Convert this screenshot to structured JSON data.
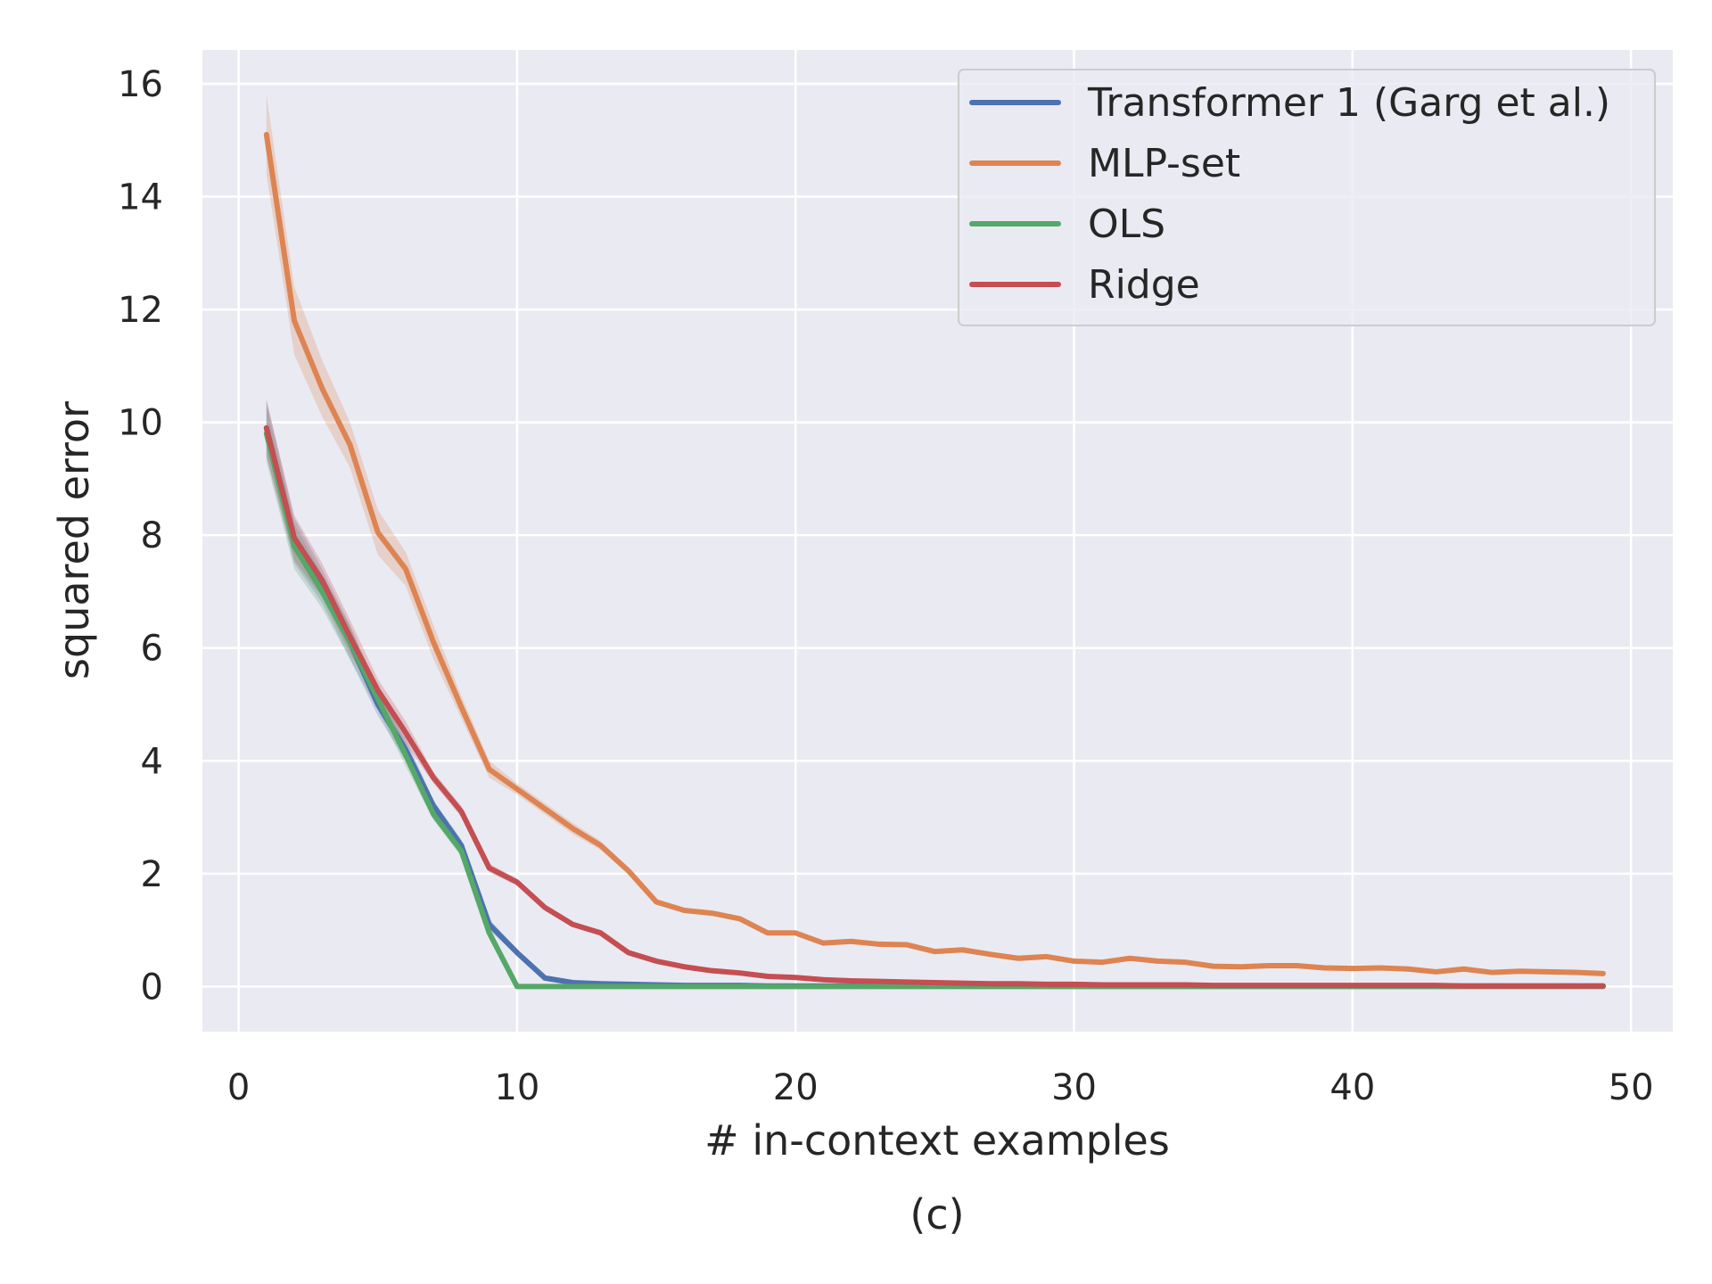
{
  "chart_data": {
    "type": "line",
    "title": "",
    "caption": "(c)",
    "xlabel": "# in-context examples",
    "ylabel": "squared error",
    "xlim": [
      -1.3,
      51.5
    ],
    "ylim": [
      -0.8,
      16.6
    ],
    "xticks": [
      0,
      10,
      20,
      30,
      40,
      50
    ],
    "yticks": [
      0,
      2,
      4,
      6,
      8,
      10,
      12,
      14,
      16
    ],
    "grid": true,
    "legend_position": "top-right",
    "x": [
      1,
      2,
      3,
      4,
      5,
      6,
      7,
      8,
      9,
      10,
      11,
      12,
      13,
      14,
      15,
      16,
      17,
      18,
      19,
      20,
      21,
      22,
      23,
      24,
      25,
      26,
      27,
      28,
      29,
      30,
      31,
      32,
      33,
      34,
      35,
      36,
      37,
      38,
      39,
      40,
      41,
      42,
      43,
      44,
      45,
      46,
      47,
      48,
      49
    ],
    "series": [
      {
        "name": "Transformer 1 (Garg et al.)",
        "color": "#4c72b0",
        "values": [
          9.9,
          7.9,
          7.1,
          6.1,
          5.0,
          4.2,
          3.2,
          2.5,
          1.1,
          0.6,
          0.15,
          0.07,
          0.05,
          0.04,
          0.03,
          0.02,
          0.02,
          0.02,
          0.01,
          0.01,
          0.01,
          0.01,
          0.01,
          0.01,
          0.01,
          0.01,
          0.01,
          0.01,
          0.01,
          0.01,
          0.01,
          0.01,
          0.01,
          0.01,
          0.01,
          0.01,
          0.01,
          0.01,
          0.01,
          0.01,
          0.01,
          0.01,
          0.01,
          0.01,
          0.01,
          0.01,
          0.01,
          0.01,
          0.01
        ],
        "band": [
          0.5,
          0.4,
          0.3,
          0.3,
          0.2,
          0.2,
          0.1,
          0.1,
          0.1,
          0.05,
          0.03,
          0.02,
          0.01,
          0.01,
          0.01,
          0,
          0,
          0,
          0,
          0,
          0,
          0,
          0,
          0,
          0,
          0,
          0,
          0,
          0,
          0,
          0,
          0,
          0,
          0,
          0,
          0,
          0,
          0,
          0,
          0,
          0,
          0,
          0,
          0,
          0,
          0,
          0,
          0,
          0
        ]
      },
      {
        "name": "MLP-set",
        "color": "#dd8452",
        "values": [
          15.1,
          11.8,
          10.6,
          9.6,
          8.05,
          7.4,
          6.1,
          4.95,
          3.85,
          3.5,
          3.15,
          2.8,
          2.5,
          2.05,
          1.5,
          1.35,
          1.3,
          1.2,
          0.95,
          0.95,
          0.77,
          0.8,
          0.75,
          0.74,
          0.62,
          0.65,
          0.57,
          0.5,
          0.53,
          0.45,
          0.43,
          0.5,
          0.45,
          0.43,
          0.36,
          0.35,
          0.37,
          0.37,
          0.33,
          0.32,
          0.33,
          0.31,
          0.26,
          0.31,
          0.25,
          0.27,
          0.26,
          0.25,
          0.23
        ],
        "band": [
          0.7,
          0.6,
          0.5,
          0.4,
          0.4,
          0.3,
          0.3,
          0.2,
          0.15,
          0.1,
          0.1,
          0.1,
          0.08,
          0.06,
          0.05,
          0.04,
          0.04,
          0.03,
          0.03,
          0.03,
          0.02,
          0.02,
          0.02,
          0.02,
          0.02,
          0.02,
          0.02,
          0.02,
          0.02,
          0.02,
          0.02,
          0.02,
          0.02,
          0.02,
          0.02,
          0.02,
          0.02,
          0.02,
          0.02,
          0.02,
          0.02,
          0.02,
          0.02,
          0.02,
          0.02,
          0.02,
          0.02,
          0.02,
          0.02
        ]
      },
      {
        "name": "OLS",
        "color": "#55a868",
        "values": [
          9.8,
          7.8,
          7.0,
          6.1,
          5.1,
          4.1,
          3.05,
          2.4,
          0.95,
          0.0,
          0.0,
          0.0,
          0.0,
          0.0,
          0.0,
          0.0,
          0.0,
          0.0,
          0.0,
          0.0,
          0.0,
          0.0,
          0.0,
          0.0,
          0.0,
          0.0,
          0.0,
          0.0,
          0.0,
          0.0,
          0.0,
          0.0,
          0.0,
          0.0,
          0.0,
          0.0,
          0.0,
          0.0,
          0.0,
          0.0,
          0.0,
          0.0,
          0.0,
          0.0,
          0.0,
          0.0,
          0.0,
          0.0,
          0.0
        ],
        "band": [
          0.5,
          0.4,
          0.3,
          0.3,
          0.2,
          0.2,
          0.1,
          0.1,
          0.1,
          0,
          0,
          0,
          0,
          0,
          0,
          0,
          0,
          0,
          0,
          0,
          0,
          0,
          0,
          0,
          0,
          0,
          0,
          0,
          0,
          0,
          0,
          0,
          0,
          0,
          0,
          0,
          0,
          0,
          0,
          0,
          0,
          0,
          0,
          0,
          0,
          0,
          0,
          0,
          0
        ]
      },
      {
        "name": "Ridge",
        "color": "#c44e52",
        "values": [
          9.9,
          7.95,
          7.2,
          6.2,
          5.25,
          4.5,
          3.7,
          3.1,
          2.1,
          1.85,
          1.4,
          1.1,
          0.95,
          0.6,
          0.45,
          0.35,
          0.28,
          0.24,
          0.18,
          0.16,
          0.12,
          0.1,
          0.09,
          0.08,
          0.07,
          0.06,
          0.05,
          0.05,
          0.04,
          0.04,
          0.03,
          0.03,
          0.03,
          0.03,
          0.02,
          0.02,
          0.02,
          0.02,
          0.02,
          0.02,
          0.02,
          0.02,
          0.02,
          0.01,
          0.01,
          0.01,
          0.01,
          0.01,
          0.01
        ],
        "band": [
          0.5,
          0.4,
          0.3,
          0.3,
          0.2,
          0.2,
          0.1,
          0.1,
          0.08,
          0.06,
          0.05,
          0.04,
          0.03,
          0.02,
          0.02,
          0.01,
          0.01,
          0.01,
          0.01,
          0.01,
          0,
          0,
          0,
          0,
          0,
          0,
          0,
          0,
          0,
          0,
          0,
          0,
          0,
          0,
          0,
          0,
          0,
          0,
          0,
          0,
          0,
          0,
          0,
          0,
          0,
          0,
          0,
          0,
          0
        ]
      }
    ]
  },
  "colors": {
    "plot_background": "#eaeaf2",
    "grid": "#ffffff",
    "text": "#262626"
  }
}
